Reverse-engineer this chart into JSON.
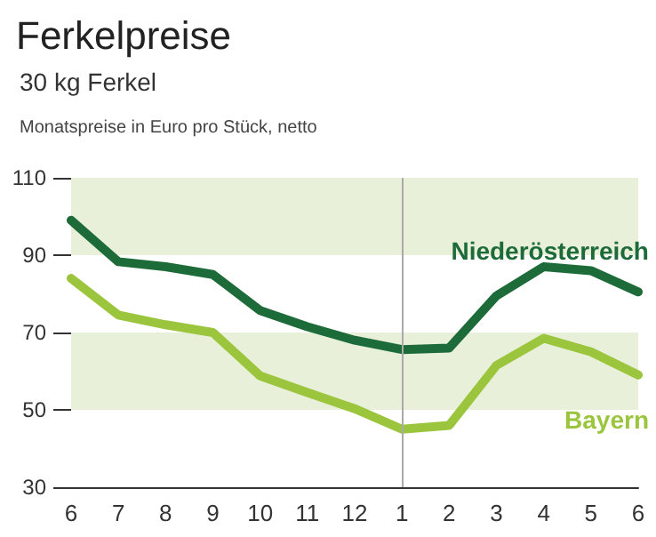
{
  "chart_data": {
    "type": "line",
    "title": "Ferkelpreise",
    "subtitle": "30 kg Ferkel",
    "annotations": [
      "Monatspreise in Euro pro Stück, netto"
    ],
    "categories": [
      "6",
      "7",
      "8",
      "9",
      "10",
      "11",
      "12",
      "1",
      "2",
      "3",
      "4",
      "5",
      "6"
    ],
    "series": [
      {
        "name": "Niederösterreich",
        "color": "#1e6b3a",
        "values": [
          99,
          88.3,
          87,
          85,
          75.7,
          71.5,
          68,
          65.6,
          66,
          79.5,
          87,
          86,
          80.5
        ]
      },
      {
        "name": "Bayern",
        "color": "#9bc53d",
        "values": [
          84,
          74.5,
          72,
          70,
          58.8,
          54.5,
          50.3,
          45,
          46,
          61.5,
          68.5,
          65,
          59
        ]
      }
    ],
    "ylim": [
      30,
      110
    ],
    "yticks": [
      30,
      50,
      70,
      90,
      110
    ],
    "bands": [
      {
        "axis": "y",
        "from": 90,
        "to": 110,
        "color": "#e9f0da"
      },
      {
        "axis": "y",
        "from": 50,
        "to": 70,
        "color": "#e9f0da"
      }
    ],
    "ref_lines": [
      {
        "axis": "x",
        "value": "1",
        "color": "#aaaaaa"
      }
    ],
    "grid": false,
    "legend": false,
    "marker": "none",
    "line_style": "solid"
  }
}
